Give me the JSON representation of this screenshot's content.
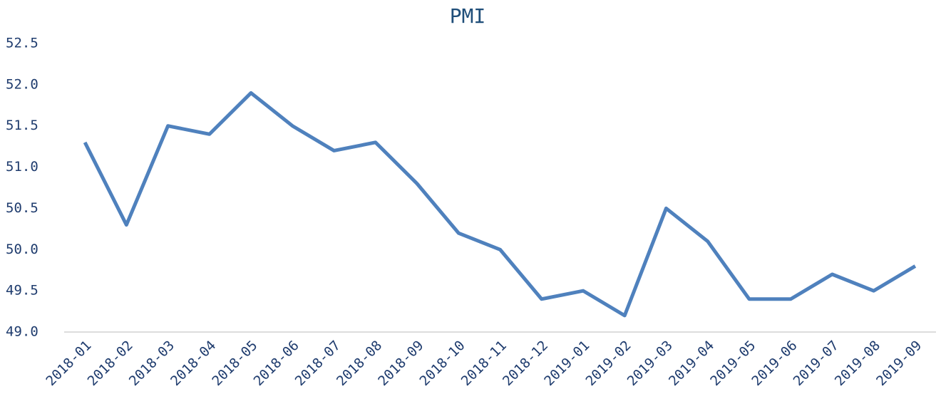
{
  "chart_data": {
    "type": "line",
    "title": "PMI",
    "categories": [
      "2018-01",
      "2018-02",
      "2018-03",
      "2018-04",
      "2018-05",
      "2018-06",
      "2018-07",
      "2018-08",
      "2018-09",
      "2018-10",
      "2018-11",
      "2018-12",
      "2019-01",
      "2019-02",
      "2019-03",
      "2019-04",
      "2019-05",
      "2019-06",
      "2019-07",
      "2019-08",
      "2019-09"
    ],
    "values": [
      51.3,
      50.3,
      51.5,
      51.4,
      51.9,
      51.5,
      51.2,
      51.3,
      50.8,
      50.2,
      50.0,
      49.4,
      49.5,
      49.2,
      50.5,
      50.1,
      49.4,
      49.4,
      49.7,
      49.5,
      49.8
    ],
    "color": "#4f81bd",
    "ylim": [
      49.0,
      52.5
    ],
    "yticks": [
      {
        "value": 49.0,
        "label": "49.0"
      },
      {
        "value": 49.5,
        "label": "49.5"
      },
      {
        "value": 50.0,
        "label": "50.0"
      },
      {
        "value": 50.5,
        "label": "50.5"
      },
      {
        "value": 51.0,
        "label": "51.0"
      },
      {
        "value": 51.5,
        "label": "51.5"
      },
      {
        "value": 52.0,
        "label": "52.0"
      },
      {
        "value": 52.5,
        "label": "52.5"
      }
    ],
    "grid": false
  }
}
